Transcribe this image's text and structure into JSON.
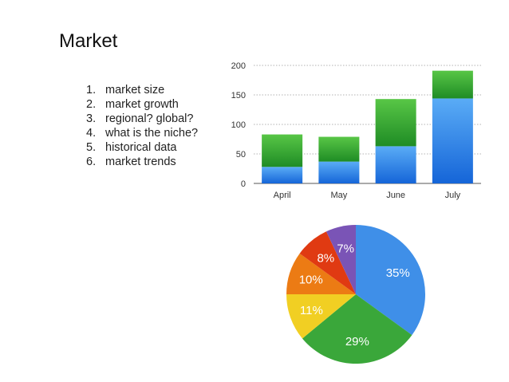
{
  "slide": {
    "title": "Market",
    "topics": [
      {
        "num": "1.",
        "text": "market size"
      },
      {
        "num": "2.",
        "text": "market growth"
      },
      {
        "num": "3.",
        "text": "regional? global?"
      },
      {
        "num": "4.",
        "text": "what is the niche?"
      },
      {
        "num": "5.",
        "text": "historical data"
      },
      {
        "num": "6.",
        "text": "market trends"
      }
    ]
  },
  "colors": {
    "blue_top": "#5aacf6",
    "blue_bottom": "#1565d8",
    "green_top": "#58c646",
    "green_bottom": "#1f8c25",
    "pie_blue": "#3f8fe8",
    "pie_green": "#3aa73a",
    "pie_yellow": "#f1cf23",
    "pie_orange": "#ec7b14",
    "pie_red": "#e03a12",
    "pie_purple": "#7a54b6",
    "grid": "#9a9a9a"
  },
  "chart_data": [
    {
      "type": "bar",
      "stacked": true,
      "categories": [
        "April",
        "May",
        "June",
        "July"
      ],
      "series": [
        {
          "values": [
            28,
            37,
            63,
            144
          ],
          "color": "blue"
        },
        {
          "values": [
            55,
            42,
            80,
            47
          ],
          "color": "green"
        }
      ],
      "ylim": [
        0,
        200
      ],
      "yticks": [
        0,
        50,
        100,
        150,
        200
      ],
      "grid": true
    },
    {
      "type": "pie",
      "slices": [
        {
          "label": "35%",
          "value": 35,
          "color": "blue"
        },
        {
          "label": "29%",
          "value": 29,
          "color": "green"
        },
        {
          "label": "11%",
          "value": 11,
          "color": "yellow"
        },
        {
          "label": "10%",
          "value": 10,
          "color": "orange"
        },
        {
          "label": "8%",
          "value": 8,
          "color": "red"
        },
        {
          "label": "7%",
          "value": 7,
          "color": "purple"
        }
      ]
    }
  ]
}
